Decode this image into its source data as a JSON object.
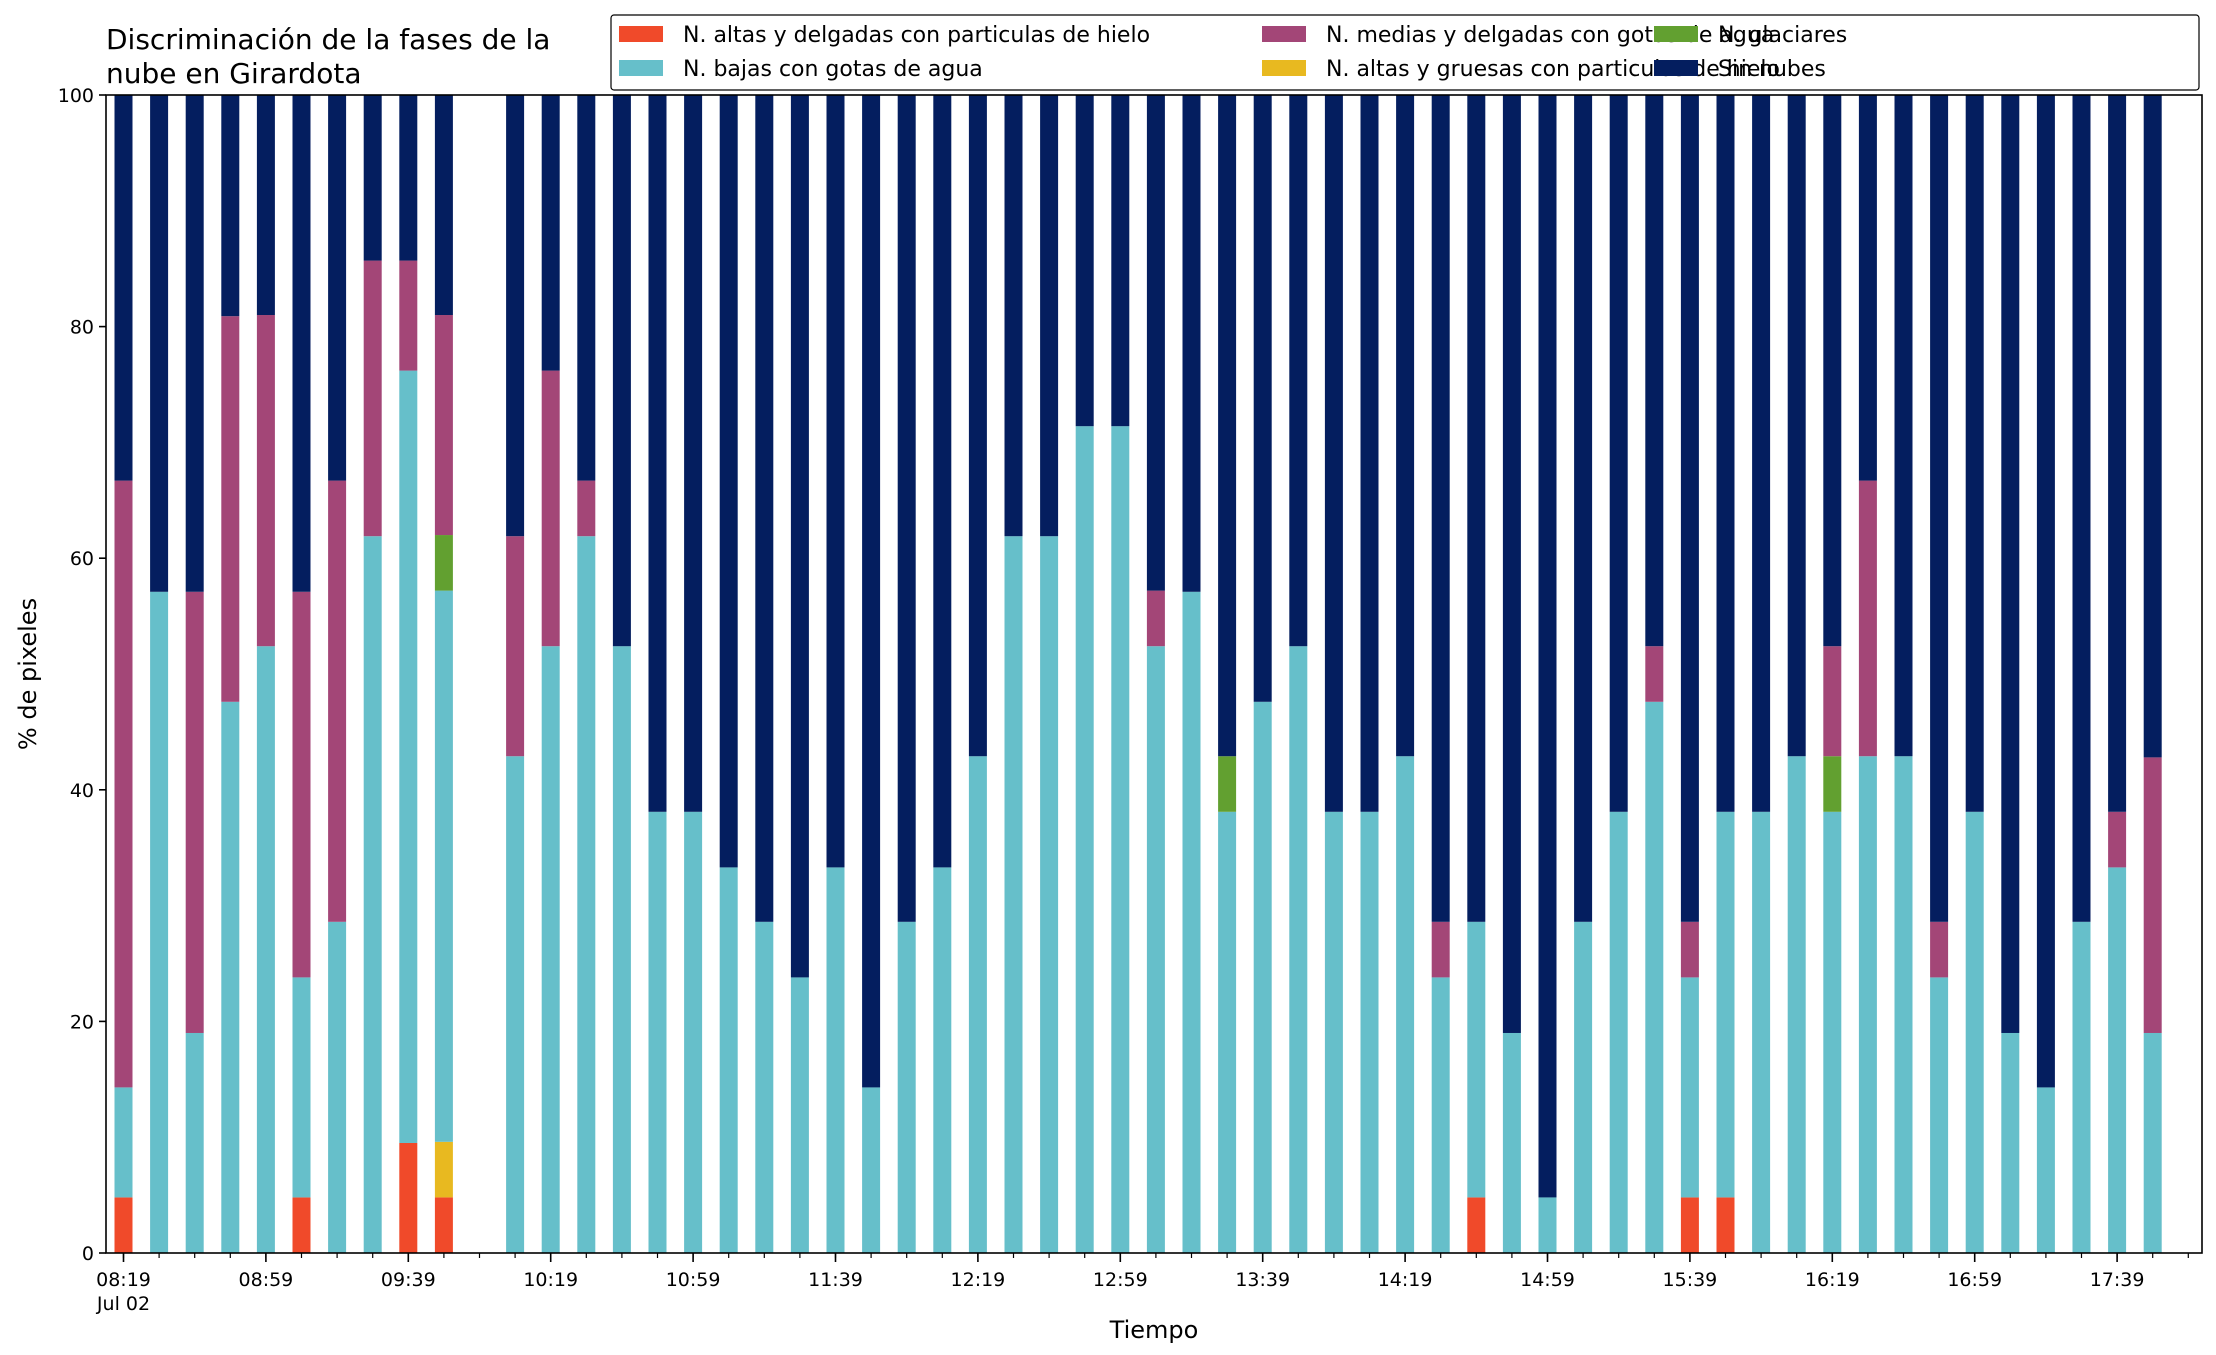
{
  "chart_data": {
    "type": "bar",
    "stacked": true,
    "title": "Discriminación de la fases de la\nnube en Girardota",
    "title_lines": [
      "Discriminación de la fases de la",
      "nube en Girardota"
    ],
    "xlabel": "Tiempo",
    "ylabel": "% de pixeles",
    "ylim": [
      0,
      100
    ],
    "y_ticks": [
      0,
      20,
      40,
      60,
      80,
      100
    ],
    "x_tick_labels": [
      "08:19",
      "08:59",
      "09:39",
      "10:19",
      "10:59",
      "11:39",
      "12:19",
      "12:59",
      "13:39",
      "14:19",
      "14:59",
      "15:39",
      "16:19",
      "16:59",
      "17:39"
    ],
    "x_date_label": "Jul 02",
    "x_start": "08:19",
    "x_interval_minutes": 10,
    "grid": false,
    "legend_position": "top-right",
    "series": [
      {
        "name": "N. altas y delgadas con particulas de hielo",
        "color": "#f04a2a"
      },
      {
        "name": "N. altas y gruesas con particulas de hielo",
        "color": "#e8b920"
      },
      {
        "name": "N. bajas con gotas de agua",
        "color": "#66bfca"
      },
      {
        "name": "N. glaciares",
        "color": "#62a030"
      },
      {
        "name": "N. medias y delgadas con gotas de agua",
        "color": "#a34677"
      },
      {
        "name": "Sin nubes",
        "color": "#041e5f"
      }
    ],
    "legend_order": [
      0,
      2,
      4,
      1,
      3,
      5
    ],
    "bars": [
      {
        "time": "08:19",
        "values": [
          4.8,
          0,
          9.5,
          0,
          52.4,
          33.3
        ]
      },
      {
        "time": "08:29",
        "values": [
          0,
          0,
          57.1,
          0,
          0,
          42.9
        ]
      },
      {
        "time": "08:39",
        "values": [
          0,
          0,
          19.0,
          0,
          38.1,
          42.9
        ]
      },
      {
        "time": "08:49",
        "values": [
          0,
          0,
          47.6,
          0,
          33.3,
          19.1
        ]
      },
      {
        "time": "08:59",
        "values": [
          0,
          0,
          52.4,
          0,
          28.6,
          19.0
        ]
      },
      {
        "time": "09:09",
        "values": [
          4.8,
          0,
          19.0,
          0,
          33.3,
          42.9
        ]
      },
      {
        "time": "09:19",
        "values": [
          0,
          0,
          28.6,
          0,
          38.1,
          33.3
        ]
      },
      {
        "time": "09:29",
        "values": [
          0,
          0,
          61.9,
          0,
          23.8,
          14.3
        ]
      },
      {
        "time": "09:39",
        "values": [
          9.5,
          0,
          66.7,
          0,
          9.5,
          14.3
        ]
      },
      {
        "time": "09:49",
        "values": [
          4.8,
          4.8,
          47.6,
          4.8,
          19.0,
          19.0
        ]
      },
      {
        "time": "10:09",
        "values": [
          0,
          0,
          42.9,
          0,
          19.0,
          38.1
        ]
      },
      {
        "time": "10:19",
        "values": [
          0,
          0,
          52.4,
          0,
          23.8,
          23.8
        ]
      },
      {
        "time": "10:29",
        "values": [
          0,
          0,
          61.9,
          0,
          4.8,
          33.3
        ]
      },
      {
        "time": "10:39",
        "values": [
          0,
          0,
          52.4,
          0,
          0,
          47.6
        ]
      },
      {
        "time": "10:49",
        "values": [
          0,
          0,
          38.1,
          0,
          0,
          61.9
        ]
      },
      {
        "time": "10:59",
        "values": [
          0,
          0,
          38.1,
          0,
          0,
          61.9
        ]
      },
      {
        "time": "11:09",
        "values": [
          0,
          0,
          33.3,
          0,
          0,
          66.7
        ]
      },
      {
        "time": "11:19",
        "values": [
          0,
          0,
          28.6,
          0,
          0,
          71.4
        ]
      },
      {
        "time": "11:29",
        "values": [
          0,
          0,
          23.8,
          0,
          0,
          76.2
        ]
      },
      {
        "time": "11:39",
        "values": [
          0,
          0,
          33.3,
          0,
          0,
          66.7
        ]
      },
      {
        "time": "11:49",
        "values": [
          0,
          0,
          14.3,
          0,
          0,
          85.7
        ]
      },
      {
        "time": "11:59",
        "values": [
          0,
          0,
          28.6,
          0,
          0,
          71.4
        ]
      },
      {
        "time": "12:09",
        "values": [
          0,
          0,
          33.3,
          0,
          0,
          66.7
        ]
      },
      {
        "time": "12:19",
        "values": [
          0,
          0,
          42.9,
          0,
          0,
          57.1
        ]
      },
      {
        "time": "12:29",
        "values": [
          0,
          0,
          61.9,
          0,
          0,
          38.1
        ]
      },
      {
        "time": "12:39",
        "values": [
          0,
          0,
          61.9,
          0,
          0,
          38.1
        ]
      },
      {
        "time": "12:49",
        "values": [
          0,
          0,
          71.4,
          0,
          0,
          28.6
        ]
      },
      {
        "time": "12:59",
        "values": [
          0,
          0,
          71.4,
          0,
          0,
          28.6
        ]
      },
      {
        "time": "13:09",
        "values": [
          0,
          0,
          52.4,
          0,
          4.8,
          42.8
        ]
      },
      {
        "time": "13:19",
        "values": [
          0,
          0,
          57.1,
          0,
          0,
          42.9
        ]
      },
      {
        "time": "13:29",
        "values": [
          0,
          0,
          38.1,
          4.8,
          0,
          57.1
        ]
      },
      {
        "time": "13:39",
        "values": [
          0,
          0,
          47.6,
          0,
          0,
          52.4
        ]
      },
      {
        "time": "13:49",
        "values": [
          0,
          0,
          52.4,
          0,
          0,
          47.6
        ]
      },
      {
        "time": "13:59",
        "values": [
          0,
          0,
          38.1,
          0,
          0,
          61.9
        ]
      },
      {
        "time": "14:09",
        "values": [
          0,
          0,
          38.1,
          0,
          0,
          61.9
        ]
      },
      {
        "time": "14:19",
        "values": [
          0,
          0,
          42.9,
          0,
          0,
          57.1
        ]
      },
      {
        "time": "14:29",
        "values": [
          0,
          0,
          23.8,
          0,
          4.8,
          71.4
        ]
      },
      {
        "time": "14:39",
        "values": [
          4.8,
          0,
          23.8,
          0,
          0,
          71.4
        ]
      },
      {
        "time": "14:49",
        "values": [
          0,
          0,
          19.0,
          0,
          0,
          81.0
        ]
      },
      {
        "time": "14:59",
        "values": [
          0,
          0,
          4.8,
          0,
          0,
          95.2
        ]
      },
      {
        "time": "15:09",
        "values": [
          0,
          0,
          28.6,
          0,
          0,
          71.4
        ]
      },
      {
        "time": "15:19",
        "values": [
          0,
          0,
          38.1,
          0,
          0,
          61.9
        ]
      },
      {
        "time": "15:29",
        "values": [
          0,
          0,
          47.6,
          0,
          4.8,
          47.6
        ]
      },
      {
        "time": "15:39",
        "values": [
          4.8,
          0,
          19.0,
          0,
          4.8,
          71.4
        ]
      },
      {
        "time": "15:49",
        "values": [
          4.8,
          0,
          33.3,
          0,
          0,
          61.9
        ]
      },
      {
        "time": "15:59",
        "values": [
          0,
          0,
          38.1,
          0,
          0,
          61.9
        ]
      },
      {
        "time": "16:09",
        "values": [
          0,
          0,
          42.9,
          0,
          0,
          57.1
        ]
      },
      {
        "time": "16:19",
        "values": [
          0,
          0,
          38.1,
          4.8,
          9.5,
          47.6
        ]
      },
      {
        "time": "16:29",
        "values": [
          0,
          0,
          42.9,
          0,
          23.8,
          33.3
        ]
      },
      {
        "time": "16:39",
        "values": [
          0,
          0,
          42.9,
          0,
          0,
          57.1
        ]
      },
      {
        "time": "16:49",
        "values": [
          0,
          0,
          23.8,
          0,
          4.8,
          71.4
        ]
      },
      {
        "time": "16:59",
        "values": [
          0,
          0,
          38.1,
          0,
          0,
          61.9
        ]
      },
      {
        "time": "17:09",
        "values": [
          0,
          0,
          19.0,
          0,
          0,
          81.0
        ]
      },
      {
        "time": "17:19",
        "values": [
          0,
          0,
          14.3,
          0,
          0,
          85.7
        ]
      },
      {
        "time": "17:29",
        "values": [
          0,
          0,
          28.6,
          0,
          0,
          71.4
        ]
      },
      {
        "time": "17:39",
        "values": [
          0,
          0,
          33.3,
          0,
          4.8,
          61.9
        ]
      },
      {
        "time": "17:49",
        "values": [
          0,
          0,
          19.0,
          0,
          23.8,
          57.2
        ]
      }
    ]
  }
}
